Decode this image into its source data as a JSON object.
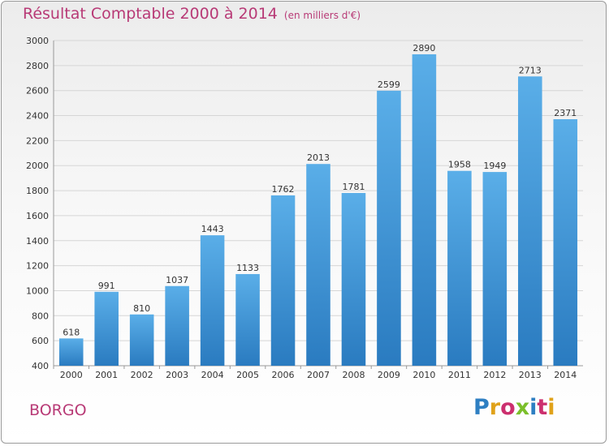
{
  "header": {
    "title": "Résultat Comptable 2000 à 2014",
    "subtitle": "(en milliers d'€)"
  },
  "footer": {
    "place": "BORGO",
    "logo": "Proxiti"
  },
  "chart_data": {
    "type": "bar",
    "categories": [
      "2000",
      "2001",
      "2002",
      "2003",
      "2004",
      "2005",
      "2006",
      "2007",
      "2008",
      "2009",
      "2010",
      "2011",
      "2012",
      "2013",
      "2014"
    ],
    "values": [
      618,
      991,
      810,
      1037,
      1443,
      1133,
      1762,
      2013,
      1781,
      2599,
      2890,
      1958,
      1949,
      2713,
      2371
    ],
    "data_labels": [
      "618",
      "991",
      "810",
      "1037",
      "1443",
      "1133",
      "1762",
      "2013",
      "1781",
      "2599",
      "2890",
      "1958",
      "1949",
      "2713",
      "2371"
    ],
    "ylim": [
      400,
      3000
    ],
    "yticks": [
      400,
      600,
      800,
      1000,
      1200,
      1400,
      1600,
      1800,
      2000,
      2200,
      2400,
      2600,
      2800,
      3000
    ],
    "grid": true,
    "colors": {
      "bar_light": "#5aaee8",
      "bar_dark": "#2a7bc0",
      "grid": "#d6d6d6"
    }
  }
}
